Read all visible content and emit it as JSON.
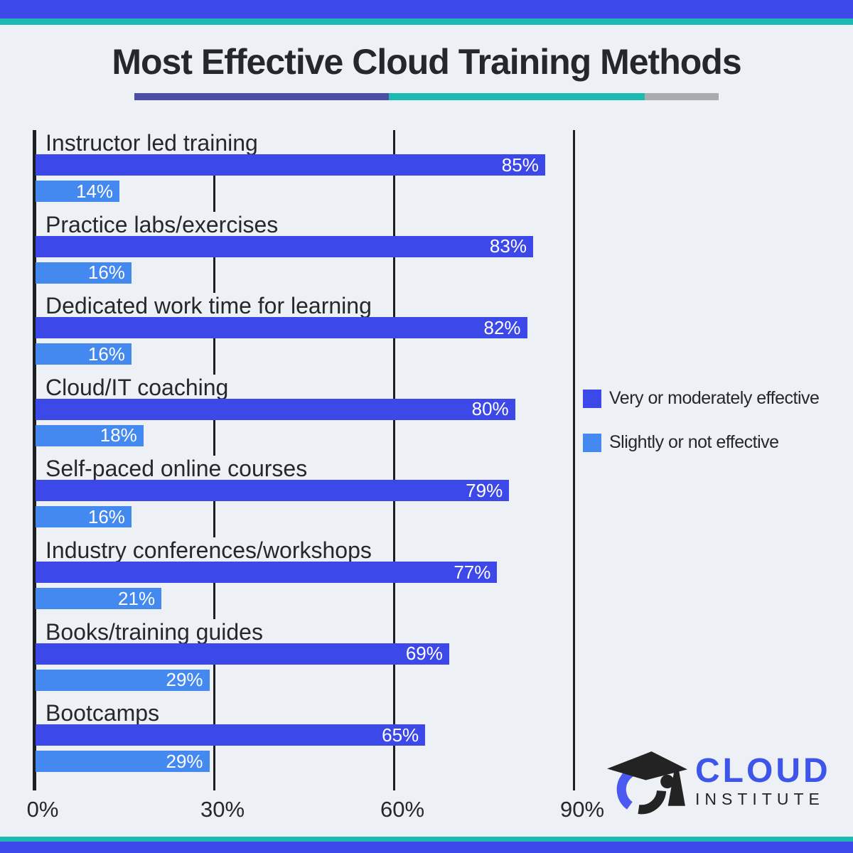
{
  "title": "Most Effective Cloud Training Methods",
  "theme": {
    "background": "#edf0f5",
    "top_border_blue": "#3c49e8",
    "accent_teal": "#1cb8b2",
    "divider_purple": "#4b4fa7",
    "divider_gray": "#a9abad",
    "text": "#26272b",
    "gridline": "#1d1e21",
    "logo_blue": "#3d55e8"
  },
  "chart_data": {
    "type": "bar",
    "orientation": "horizontal",
    "title": "Most Effective Cloud Training Methods",
    "categories": [
      "Instructor led training",
      "Practice labs/exercises",
      "Dedicated work time for learning",
      "Cloud/IT coaching",
      "Self-paced online courses",
      "Industry conferences/workshops",
      "Books/training guides",
      "Bootcamps"
    ],
    "series": [
      {
        "name": "Very or moderately effective",
        "color": "#3c49e8",
        "values": [
          85,
          83,
          82,
          80,
          79,
          77,
          69,
          65
        ]
      },
      {
        "name": "Slightly or not effective",
        "color": "#4489ef",
        "values": [
          14,
          16,
          16,
          18,
          16,
          21,
          29,
          29
        ]
      }
    ],
    "value_suffix": "%",
    "xlim": [
      0,
      90
    ],
    "x_ticks": [
      {
        "label": "0%",
        "value": 0
      },
      {
        "label": "30%",
        "value": 30
      },
      {
        "label": "60%",
        "value": 60
      },
      {
        "label": "90%",
        "value": 90
      }
    ],
    "grid": "vertical lines at ticks",
    "legend_position": "right-middle",
    "value_labels": "inside bar, right-aligned, white"
  },
  "legend": {
    "items": [
      {
        "label": "Very or moderately effective",
        "color": "#3c49e8"
      },
      {
        "label": "Slightly or not effective",
        "color": "#4489ef"
      }
    ]
  },
  "logo": {
    "icon": "graduation-cap-icon",
    "name_top": "CLOUD",
    "name_bottom": "INSTITUTE"
  }
}
